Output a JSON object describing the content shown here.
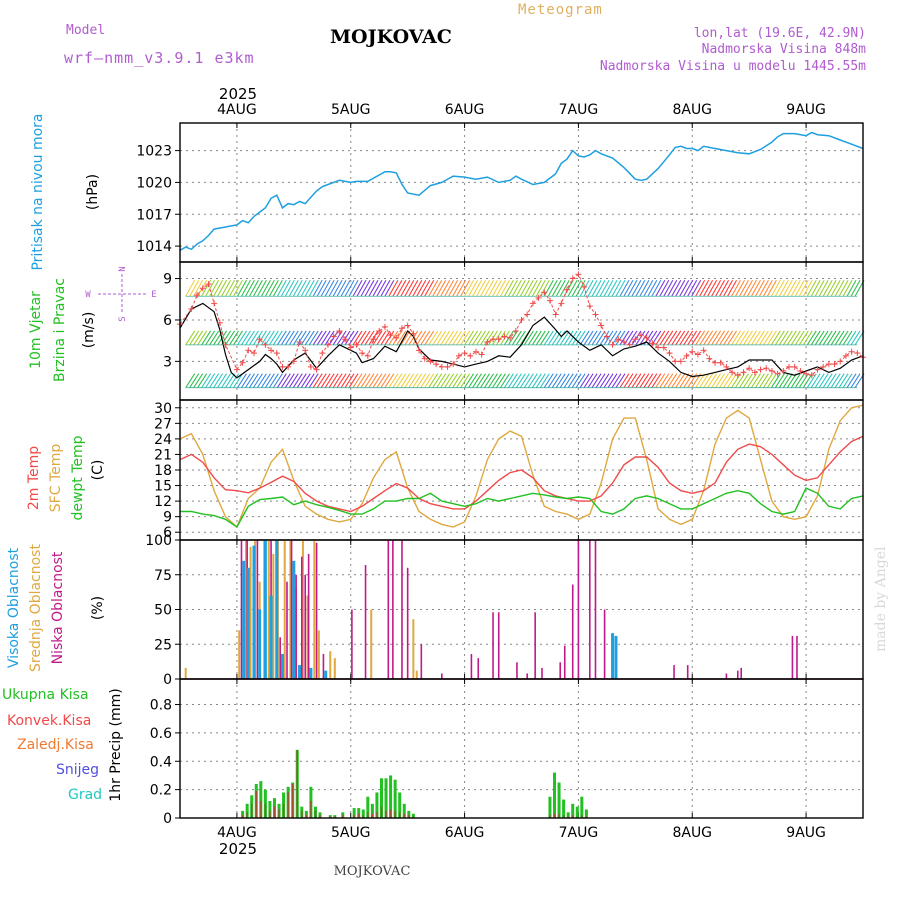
{
  "header": {
    "model_label": "Model",
    "model_name": "wrf—nmm_v3.9.1 e3km",
    "title": "MOJKOVAC",
    "subtitle": "Meteogram",
    "coords": "lon,lat (19.6E, 42.9N)",
    "elevation": "Nadmorska Visina 848m",
    "model_elevation": "Nadmorska Visina u modelu 1445.55m",
    "footer": "MOJKOVAC",
    "watermark": "made by Angel"
  },
  "colors": {
    "pressure": "#1ea0e0",
    "temp2m": "#f04a4a",
    "sfc": "#e0a840",
    "dew": "#22c022",
    "high_cloud": "#1ea0e0",
    "mid_cloud": "#e0a840",
    "low_cloud": "#c01a8a",
    "total_precip": "#22c022",
    "conv_precip": "#f04a4a",
    "freezing": "#f07a30",
    "snow": "#5050e0",
    "hail": "#20c8c0"
  },
  "time_axis": {
    "year_top": "2025",
    "year_bottom": "2025",
    "day_labels": [
      "4AUG",
      "5AUG",
      "6AUG",
      "7AUG",
      "8AUG",
      "9AUG"
    ],
    "start": 3.5,
    "end": 9.5
  },
  "chart_data": [
    {
      "id": "pressure",
      "type": "line",
      "ylabel_main": "Pritisak na nivou mora",
      "units": "(hPa)",
      "yticks": [
        "1014",
        "1017",
        "1020",
        "1023"
      ],
      "ylim": [
        1012.5,
        1025.6
      ],
      "x": [
        3.5,
        3.55,
        3.6,
        3.65,
        3.7,
        3.75,
        3.8,
        3.9,
        4.0,
        4.05,
        4.1,
        4.15,
        4.2,
        4.25,
        4.3,
        4.35,
        4.4,
        4.45,
        4.5,
        4.55,
        4.6,
        4.7,
        4.75,
        4.8,
        4.9,
        5.0,
        5.05,
        5.15,
        5.2,
        5.3,
        5.35,
        5.4,
        5.45,
        5.5,
        5.6,
        5.7,
        5.8,
        5.9,
        6.0,
        6.1,
        6.2,
        6.3,
        6.4,
        6.45,
        6.5,
        6.6,
        6.7,
        6.8,
        6.85,
        6.9,
        6.95,
        7.0,
        7.05,
        7.1,
        7.15,
        7.2,
        7.3,
        7.4,
        7.5,
        7.55,
        7.6,
        7.7,
        7.8,
        7.85,
        7.9,
        7.95,
        8.0,
        8.05,
        8.1,
        8.2,
        8.3,
        8.4,
        8.5,
        8.6,
        8.7,
        8.75,
        8.8,
        8.85,
        8.9,
        9.0,
        9.05,
        9.1,
        9.2,
        9.3,
        9.4,
        9.5
      ],
      "y": [
        1013.6,
        1013.9,
        1013.7,
        1014.2,
        1014.5,
        1015.0,
        1015.6,
        1015.8,
        1016.0,
        1016.4,
        1016.2,
        1016.8,
        1017.2,
        1017.6,
        1018.5,
        1018.8,
        1017.6,
        1018.0,
        1017.9,
        1018.2,
        1018.0,
        1019.2,
        1019.6,
        1019.8,
        1020.2,
        1020.0,
        1020.1,
        1020.1,
        1020.4,
        1021.0,
        1021.0,
        1020.9,
        1019.8,
        1019.0,
        1018.8,
        1019.7,
        1020.0,
        1020.6,
        1020.5,
        1020.3,
        1020.5,
        1020.0,
        1020.2,
        1020.6,
        1020.3,
        1019.8,
        1020.0,
        1020.8,
        1021.8,
        1022.2,
        1023.0,
        1022.5,
        1022.4,
        1022.6,
        1023.0,
        1022.7,
        1022.3,
        1021.4,
        1020.3,
        1020.2,
        1020.3,
        1021.3,
        1022.6,
        1023.3,
        1023.4,
        1023.2,
        1023.2,
        1023.0,
        1023.4,
        1023.2,
        1023.0,
        1022.8,
        1022.7,
        1023.1,
        1023.8,
        1024.3,
        1024.6,
        1024.6,
        1024.6,
        1024.4,
        1024.7,
        1024.5,
        1024.4,
        1024.0,
        1023.6,
        1023.2
      ]
    },
    {
      "id": "wind",
      "type": "line",
      "ylabel_main": "10m Vjetar",
      "ylabel_sub": "Brzina i Pravac",
      "units": "(m/s)",
      "compass": {
        "n": "N",
        "s": "S",
        "w": "W",
        "e": "E"
      },
      "yticks": [
        "3",
        "6",
        "9"
      ],
      "ylim": [
        0.2,
        10.2
      ],
      "x": [
        3.5,
        3.6,
        3.7,
        3.8,
        3.85,
        3.9,
        3.95,
        4.0,
        4.1,
        4.2,
        4.25,
        4.3,
        4.35,
        4.4,
        4.5,
        4.6,
        4.7,
        4.8,
        4.9,
        5.0,
        5.05,
        5.1,
        5.2,
        5.3,
        5.35,
        5.4,
        5.5,
        5.55,
        5.6,
        5.7,
        5.8,
        5.9,
        6.0,
        6.1,
        6.2,
        6.3,
        6.4,
        6.5,
        6.6,
        6.7,
        6.8,
        6.85,
        6.9,
        7.0,
        7.1,
        7.2,
        7.3,
        7.4,
        7.5,
        7.6,
        7.7,
        7.8,
        7.9,
        8.0,
        8.1,
        8.2,
        8.3,
        8.4,
        8.5,
        8.6,
        8.7,
        8.8,
        8.9,
        9.0,
        9.1,
        9.2,
        9.3,
        9.4,
        9.5
      ],
      "y": [
        5.4,
        6.8,
        7.2,
        6.6,
        5.3,
        3.5,
        2.2,
        1.8,
        2.4,
        3.0,
        3.5,
        3.2,
        2.8,
        2.2,
        3.1,
        3.6,
        2.5,
        3.4,
        4.2,
        3.8,
        3.6,
        2.9,
        3.2,
        4.1,
        3.9,
        3.7,
        5.2,
        4.8,
        3.9,
        3.1,
        3.0,
        2.8,
        2.6,
        2.8,
        3.0,
        3.4,
        3.3,
        4.2,
        5.6,
        6.2,
        5.3,
        4.8,
        5.2,
        4.4,
        3.8,
        4.2,
        3.4,
        3.9,
        4.1,
        4.4,
        3.6,
        3.0,
        2.2,
        1.9,
        2.0,
        2.2,
        2.4,
        2.6,
        3.1,
        3.1,
        3.1,
        2.2,
        2.0,
        2.3,
        2.6,
        2.2,
        2.5,
        3.1,
        3.4
      ],
      "gust_x": [
        3.5,
        3.6,
        3.65,
        3.7,
        3.75,
        3.8,
        3.85,
        3.9,
        4.0,
        4.05,
        4.1,
        4.15,
        4.2,
        4.25,
        4.3,
        4.35,
        4.4,
        4.45,
        4.5,
        4.55,
        4.6,
        4.65,
        4.7,
        4.75,
        4.8,
        4.85,
        4.9,
        4.95,
        5.0,
        5.05,
        5.1,
        5.15,
        5.2,
        5.25,
        5.3,
        5.35,
        5.4,
        5.45,
        5.5,
        5.55,
        5.6,
        5.65,
        5.7,
        5.75,
        5.8,
        5.85,
        5.9,
        5.95,
        6.0,
        6.05,
        6.1,
        6.15,
        6.2,
        6.25,
        6.3,
        6.35,
        6.4,
        6.45,
        6.5,
        6.55,
        6.6,
        6.65,
        6.7,
        6.75,
        6.8,
        6.85,
        6.9,
        6.95,
        7.0,
        7.05,
        7.1,
        7.15,
        7.2,
        7.25,
        7.3,
        7.35,
        7.4,
        7.45,
        7.5,
        7.55,
        7.6,
        7.65,
        7.7,
        7.75,
        7.8,
        7.85,
        7.9,
        7.95,
        8.0,
        8.05,
        8.1,
        8.15,
        8.2,
        8.25,
        8.3,
        8.35,
        8.4,
        8.45,
        8.5,
        8.55,
        8.6,
        8.65,
        8.7,
        8.75,
        8.8,
        8.85,
        8.9,
        8.95,
        9.0,
        9.05,
        9.1,
        9.15,
        9.2,
        9.25,
        9.3,
        9.35,
        9.4,
        9.45,
        9.5
      ],
      "gust_y": [
        5.7,
        6.8,
        7.8,
        8.3,
        8.6,
        7.2,
        5.8,
        4.2,
        2.4,
        2.9,
        3.8,
        3.6,
        4.6,
        4.2,
        3.8,
        3.6,
        2.6,
        2.6,
        3.0,
        4.4,
        3.8,
        2.6,
        2.4,
        3.6,
        4.2,
        4.8,
        5.2,
        4.6,
        4.0,
        4.2,
        3.6,
        3.4,
        4.6,
        5.2,
        5.5,
        4.9,
        4.7,
        5.4,
        5.6,
        5.0,
        3.8,
        3.2,
        3.0,
        2.8,
        2.6,
        2.6,
        2.8,
        3.4,
        3.6,
        3.4,
        3.7,
        3.5,
        4.4,
        4.6,
        4.6,
        4.8,
        4.7,
        5.2,
        6.0,
        6.4,
        7.2,
        7.6,
        8.0,
        7.4,
        6.4,
        7.2,
        8.2,
        9.0,
        9.3,
        8.4,
        7.0,
        6.4,
        5.6,
        4.8,
        4.2,
        4.6,
        4.4,
        4.2,
        4.6,
        4.9,
        4.7,
        4.3,
        4.0,
        4.0,
        3.6,
        3.0,
        3.0,
        3.4,
        3.7,
        3.5,
        3.8,
        3.2,
        2.9,
        2.9,
        2.6,
        2.2,
        2.0,
        2.2,
        2.5,
        2.2,
        2.4,
        2.5,
        2.3,
        2.1,
        2.3,
        2.6,
        2.6,
        2.3,
        2.1,
        2.0,
        2.4,
        2.6,
        2.8,
        2.8,
        3.0,
        3.4,
        3.7,
        3.6,
        3.3
      ]
    },
    {
      "id": "temperature",
      "type": "line",
      "ylabel_main": "2m Temp",
      "ylabel_sub": "SFC Temp",
      "ylabel_third": "dewpt Temp",
      "units": "(C)",
      "yticks": [
        "6",
        "9",
        "12",
        "15",
        "18",
        "21",
        "24",
        "27",
        "30"
      ],
      "ylim": [
        4.5,
        31.5
      ],
      "x": [
        3.5,
        3.6,
        3.7,
        3.8,
        3.9,
        4.0,
        4.1,
        4.2,
        4.3,
        4.4,
        4.5,
        4.6,
        4.7,
        4.8,
        4.9,
        5.0,
        5.1,
        5.2,
        5.3,
        5.4,
        5.5,
        5.6,
        5.7,
        5.8,
        5.9,
        6.0,
        6.1,
        6.2,
        6.3,
        6.4,
        6.5,
        6.6,
        6.7,
        6.8,
        6.9,
        7.0,
        7.1,
        7.2,
        7.3,
        7.4,
        7.5,
        7.6,
        7.7,
        7.8,
        7.9,
        8.0,
        8.1,
        8.2,
        8.3,
        8.4,
        8.5,
        8.6,
        8.7,
        8.8,
        8.9,
        9.0,
        9.1,
        9.2,
        9.3,
        9.4,
        9.5
      ],
      "t2m": [
        20.0,
        21.0,
        19.5,
        16.5,
        14.2,
        14.0,
        13.6,
        14.5,
        15.6,
        16.8,
        15.8,
        13.5,
        12.0,
        11.0,
        10.5,
        10.0,
        11.0,
        12.5,
        14.0,
        15.4,
        14.5,
        12.5,
        11.5,
        11.0,
        10.5,
        10.5,
        12.0,
        14.0,
        16.0,
        17.5,
        18.0,
        16.5,
        14.0,
        13.0,
        12.5,
        12.0,
        12.0,
        13.0,
        15.5,
        19.0,
        20.5,
        20.5,
        18.5,
        15.5,
        14.0,
        13.5,
        14.0,
        15.5,
        19.5,
        22.0,
        23.0,
        22.5,
        21.0,
        19.0,
        17.0,
        16.0,
        16.5,
        19.0,
        21.5,
        23.5,
        24.5
      ],
      "sfc": [
        24.0,
        25.0,
        21.0,
        14.0,
        9.0,
        7.0,
        12.5,
        14.5,
        19.5,
        22.0,
        16.0,
        11.0,
        9.5,
        8.5,
        8.0,
        8.5,
        11.5,
        16.5,
        20.0,
        21.5,
        14.5,
        10.0,
        8.5,
        7.5,
        7.0,
        8.0,
        13.0,
        20.0,
        24.0,
        25.5,
        24.5,
        17.0,
        11.0,
        10.0,
        9.5,
        8.5,
        9.5,
        15.5,
        24.0,
        28.0,
        28.0,
        20.0,
        10.5,
        8.5,
        7.5,
        8.5,
        14.0,
        23.0,
        28.0,
        29.5,
        28.0,
        20.0,
        12.0,
        9.0,
        8.5,
        9.0,
        13.0,
        22.0,
        27.5,
        30.0,
        30.5
      ],
      "dew": [
        10.0,
        10.0,
        9.5,
        9.2,
        8.5,
        7.0,
        11.0,
        12.3,
        12.5,
        12.8,
        11.3,
        12.0,
        11.3,
        10.8,
        10.2,
        9.5,
        9.5,
        10.5,
        12.0,
        12.0,
        12.5,
        12.5,
        13.5,
        12.0,
        11.5,
        11.0,
        11.5,
        12.5,
        12.0,
        12.5,
        13.0,
        13.5,
        13.2,
        12.8,
        12.5,
        12.8,
        12.5,
        10.0,
        9.5,
        10.5,
        12.5,
        13.0,
        12.5,
        11.5,
        10.5,
        10.5,
        11.5,
        12.5,
        13.5,
        14.0,
        13.5,
        11.5,
        10.0,
        9.5,
        10.0,
        14.5,
        13.5,
        11.0,
        10.5,
        12.5,
        13.0
      ]
    },
    {
      "id": "clouds",
      "type": "bar",
      "ylabel_high": "Visoka Oblacnost",
      "ylabel_mid": "Srednja Oblacnost",
      "ylabel_low": "Niska Oblacnost",
      "units": "(%)",
      "yticks": [
        "0",
        "25",
        "50",
        "75",
        "100"
      ],
      "ylim": [
        0,
        100
      ],
      "high_x": [
        4.06,
        4.1,
        4.15,
        4.2,
        4.25,
        4.3,
        4.35,
        4.4,
        4.5,
        4.55,
        4.65,
        4.78,
        7.3,
        7.33
      ],
      "high_y": [
        85,
        80,
        96,
        50,
        100,
        60,
        100,
        18,
        85,
        10,
        8,
        6,
        33,
        31
      ],
      "mid_x": [
        3.55,
        4.02,
        4.08,
        4.12,
        4.16,
        4.2,
        4.24,
        4.28,
        4.32,
        4.36,
        4.42,
        4.47,
        4.52,
        4.58,
        4.62,
        4.68,
        4.72,
        4.82,
        4.86,
        5.18,
        5.55,
        5.58
      ],
      "mid_y": [
        8,
        35,
        100,
        95,
        100,
        70,
        100,
        100,
        90,
        100,
        100,
        100,
        65,
        100,
        60,
        100,
        35,
        20,
        15,
        50,
        43,
        6
      ],
      "low_x": [
        4.04,
        4.09,
        4.18,
        4.3,
        4.38,
        4.44,
        4.48,
        4.52,
        4.57,
        4.6,
        4.63,
        4.7,
        4.76,
        5.01,
        5.13,
        5.33,
        5.37,
        5.45,
        5.5,
        5.62,
        5.8,
        6.06,
        6.12,
        6.25,
        6.3,
        6.46,
        6.55,
        6.62,
        6.68,
        6.84,
        6.88,
        6.95,
        7.0,
        7.1,
        7.15,
        7.23,
        7.84,
        7.96,
        8.3,
        8.4,
        8.43,
        8.88,
        8.92
      ],
      "low_y": [
        100,
        100,
        100,
        100,
        30,
        70,
        100,
        75,
        88,
        75,
        90,
        98,
        18,
        50,
        82,
        100,
        100,
        100,
        80,
        25,
        4,
        18,
        15,
        48,
        48,
        12,
        4,
        48,
        8,
        12,
        24,
        68,
        100,
        100,
        100,
        50,
        10,
        10,
        4,
        6,
        8,
        31,
        31
      ]
    },
    {
      "id": "precip",
      "type": "bar",
      "legend": [
        "Ukupna Kisa",
        "Konvek.Kisa",
        "Zaledj.Kisa",
        "Snijeg",
        "Grad"
      ],
      "units": "1hr Precip (mm)",
      "yticks": [
        "0",
        "0.2",
        "0.4",
        "0.6",
        "0.8"
      ],
      "ylim": [
        0,
        0.98
      ],
      "x": [
        4.05,
        4.09,
        4.13,
        4.17,
        4.21,
        4.25,
        4.29,
        4.33,
        4.37,
        4.41,
        4.45,
        4.49,
        4.53,
        4.57,
        4.61,
        4.65,
        4.69,
        4.73,
        4.82,
        4.86,
        4.93,
        5.03,
        5.07,
        5.11,
        5.15,
        5.19,
        5.23,
        5.27,
        5.31,
        5.35,
        5.39,
        5.43,
        5.47,
        5.51,
        5.55,
        6.75,
        6.79,
        6.83,
        6.87,
        6.91,
        6.95,
        6.99,
        7.03,
        7.07
      ],
      "total": [
        0.05,
        0.1,
        0.16,
        0.24,
        0.26,
        0.2,
        0.12,
        0.14,
        0.1,
        0.18,
        0.22,
        0.25,
        0.48,
        0.08,
        0.05,
        0.22,
        0.08,
        0.04,
        0.02,
        0.02,
        0.04,
        0.07,
        0.07,
        0.06,
        0.15,
        0.1,
        0.18,
        0.28,
        0.28,
        0.3,
        0.27,
        0.18,
        0.1,
        0.05,
        0.03,
        0.15,
        0.32,
        0.25,
        0.13,
        0.04,
        0.1,
        0.08,
        0.15,
        0.06
      ],
      "conv": [
        0.02,
        0.04,
        0.1,
        0.19,
        0.12,
        0.1,
        0.05,
        0.08,
        0.06,
        0.1,
        0.18,
        0.24,
        0.48,
        0.05,
        0.02,
        0.12,
        0.05,
        0.02,
        0.01,
        0.01,
        0.02,
        0.02,
        0.03,
        0.02,
        0.04,
        0.03,
        0.04,
        0.08,
        0.05,
        0.06,
        0.05,
        0.04,
        0.03,
        0.02,
        0.01,
        0.02,
        0.03,
        0.03,
        0.02,
        0.01,
        0.02,
        0.01,
        0.02,
        0.01
      ]
    }
  ]
}
